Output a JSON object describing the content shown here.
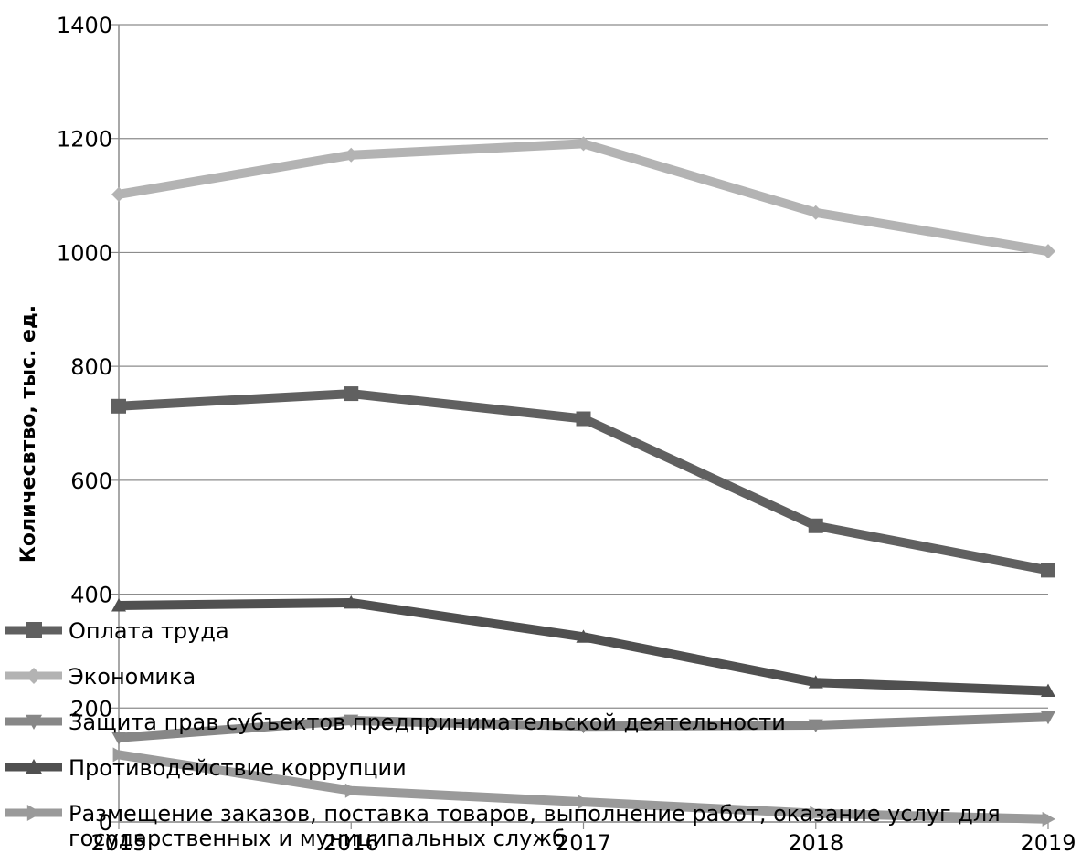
{
  "chart_data": {
    "type": "line",
    "title": "",
    "xlabel": "",
    "ylabel": "Количесвтво, тыс. ед.",
    "ylim": [
      0,
      1400
    ],
    "yticks": [
      "0",
      "200",
      "400",
      "600",
      "800",
      "1000",
      "1200",
      "1400"
    ],
    "categories": [
      "2015",
      "2016",
      "2017",
      "2018",
      "2019"
    ],
    "grid": true,
    "legend_position": "bottom-left",
    "series": [
      {
        "name": "Оплата труда",
        "values": [
          730,
          752,
          708,
          520,
          442
        ],
        "color": "#606060",
        "marker": "square"
      },
      {
        "name": "Экономика",
        "values": [
          1102,
          1171,
          1191,
          1070,
          1002
        ],
        "color": "#b3b3b3",
        "marker": "diamond"
      },
      {
        "name": "Защита прав субъектов предпринимательской деятельности",
        "values": [
          148,
          178,
          168,
          170,
          184
        ],
        "color": "#878787",
        "marker": "triangle-down"
      },
      {
        "name": "Противодействие коррупции",
        "values": [
          380,
          385,
          325,
          245,
          230
        ],
        "color": "#505050",
        "marker": "triangle-up"
      },
      {
        "name": "Размещение заказов, поставка товаров, выполнение работ, оказание услуг для государственных и муниципальных служб",
        "values": [
          118,
          55,
          35,
          15,
          5
        ],
        "color": "#9a9a9a",
        "marker": "triangle-right"
      }
    ]
  }
}
